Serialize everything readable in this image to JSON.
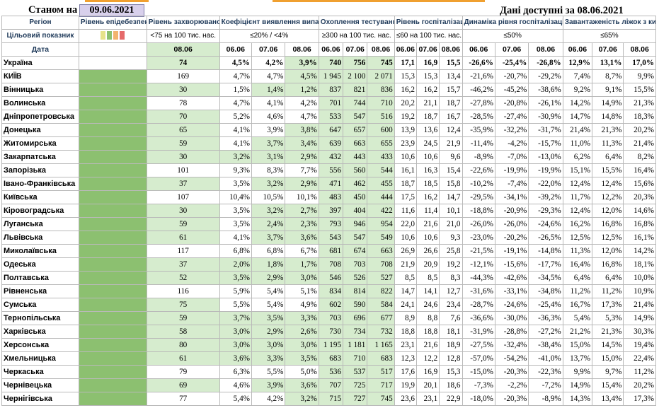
{
  "header": {
    "as_of_label": "Станом на",
    "as_of_date": "09.06.2021",
    "available_label": "Дані доступні за 08.06.2021"
  },
  "columns": {
    "region": "Регіон",
    "target_label": "Цільовий показник",
    "date_label": "Дата",
    "danger": "Рівень епідебезпеки",
    "incidence": "Рівень захворюваності",
    "incidence_target": "<75 на 100 тис. нас.",
    "positivity": "Коефіцієнт виявлення випадків інфікування",
    "positivity_target": "≤20% / <4%",
    "testing": "Охоплення тестуванням",
    "testing_target": "≥300 на 100 тис. нас.",
    "hosp": "Рівень госпіталізацій",
    "hosp_target": "≤60 на 100 тис. нас.",
    "hosp_dyn": "Динаміка рівня госпіталізацій",
    "hosp_dyn_target": "≤50%",
    "oxygen": "Завантаженість ліжок з киснем",
    "oxygen_target": "≤65%"
  },
  "dates": {
    "single": "08.06",
    "d1": "06.06",
    "d2": "07.06",
    "d3": "08.06"
  },
  "legend_colors": [
    "#e6e28a",
    "#8cc070",
    "#f2b36e",
    "#e56a6a"
  ],
  "rows": [
    {
      "name": "Україна",
      "inc": "74",
      "p": [
        "4,5%",
        "4,2%",
        "3,9%"
      ],
      "t": [
        "740",
        "756",
        "745"
      ],
      "h": [
        "17,1",
        "16,9",
        "15,5"
      ],
      "hd": [
        "-26,6%",
        "-25,4%",
        "-26,8%"
      ],
      "o": [
        "12,9%",
        "13,1%",
        "17,0%"
      ]
    },
    {
      "name": "КИЇВ",
      "inc": "169",
      "p": [
        "4,7%",
        "4,7%",
        "4,5%"
      ],
      "t": [
        "1 945",
        "2 100",
        "2 071"
      ],
      "h": [
        "15,3",
        "15,3",
        "13,4"
      ],
      "hd": [
        "-21,6%",
        "-20,7%",
        "-29,2%"
      ],
      "o": [
        "7,4%",
        "8,7%",
        "9,9%"
      ]
    },
    {
      "name": "Вінницька",
      "inc": "30",
      "p": [
        "1,5%",
        "1,4%",
        "1,2%"
      ],
      "t": [
        "837",
        "821",
        "836"
      ],
      "h": [
        "16,2",
        "16,2",
        "15,7"
      ],
      "hd": [
        "-46,2%",
        "-45,2%",
        "-38,6%"
      ],
      "o": [
        "9,2%",
        "9,1%",
        "15,5%"
      ]
    },
    {
      "name": "Волинська",
      "inc": "78",
      "p": [
        "4,7%",
        "4,1%",
        "4,2%"
      ],
      "t": [
        "701",
        "744",
        "710"
      ],
      "h": [
        "20,2",
        "21,1",
        "18,7"
      ],
      "hd": [
        "-27,8%",
        "-20,8%",
        "-26,1%"
      ],
      "o": [
        "14,2%",
        "14,9%",
        "21,3%"
      ]
    },
    {
      "name": "Дніпропетровська",
      "inc": "70",
      "p": [
        "5,2%",
        "4,6%",
        "4,7%"
      ],
      "t": [
        "533",
        "547",
        "516"
      ],
      "h": [
        "19,2",
        "18,7",
        "16,7"
      ],
      "hd": [
        "-28,5%",
        "-27,4%",
        "-30,9%"
      ],
      "o": [
        "14,7%",
        "14,8%",
        "18,3%"
      ]
    },
    {
      "name": "Донецька",
      "inc": "65",
      "p": [
        "4,1%",
        "3,9%",
        "3,8%"
      ],
      "t": [
        "647",
        "657",
        "600"
      ],
      "h": [
        "13,9",
        "13,6",
        "12,4"
      ],
      "hd": [
        "-35,9%",
        "-32,2%",
        "-31,7%"
      ],
      "o": [
        "21,4%",
        "21,3%",
        "20,2%"
      ]
    },
    {
      "name": "Житомирська",
      "inc": "59",
      "p": [
        "4,1%",
        "3,7%",
        "3,4%"
      ],
      "t": [
        "639",
        "663",
        "655"
      ],
      "h": [
        "23,9",
        "24,5",
        "21,9"
      ],
      "hd": [
        "-11,4%",
        "-4,2%",
        "-15,7%"
      ],
      "o": [
        "11,0%",
        "11,3%",
        "21,4%"
      ]
    },
    {
      "name": "Закарпатська",
      "inc": "30",
      "p": [
        "3,2%",
        "3,1%",
        "2,9%"
      ],
      "t": [
        "432",
        "443",
        "433"
      ],
      "h": [
        "10,6",
        "10,6",
        "9,6"
      ],
      "hd": [
        "-8,9%",
        "-7,0%",
        "-13,0%"
      ],
      "o": [
        "6,2%",
        "6,4%",
        "8,2%"
      ]
    },
    {
      "name": "Запорізька",
      "inc": "101",
      "p": [
        "9,3%",
        "8,3%",
        "7,7%"
      ],
      "t": [
        "556",
        "560",
        "544"
      ],
      "h": [
        "16,1",
        "16,3",
        "15,4"
      ],
      "hd": [
        "-22,6%",
        "-19,9%",
        "-19,9%"
      ],
      "o": [
        "15,1%",
        "15,5%",
        "16,4%"
      ]
    },
    {
      "name": "Івано-Франківська",
      "inc": "37",
      "p": [
        "3,5%",
        "3,2%",
        "2,9%"
      ],
      "t": [
        "471",
        "462",
        "455"
      ],
      "h": [
        "18,7",
        "18,5",
        "15,8"
      ],
      "hd": [
        "-10,2%",
        "-7,4%",
        "-22,0%"
      ],
      "o": [
        "12,4%",
        "12,4%",
        "15,6%"
      ]
    },
    {
      "name": "Київська",
      "inc": "107",
      "p": [
        "10,4%",
        "10,5%",
        "10,1%"
      ],
      "t": [
        "483",
        "450",
        "444"
      ],
      "h": [
        "17,5",
        "16,2",
        "14,7"
      ],
      "hd": [
        "-29,5%",
        "-34,1%",
        "-39,2%"
      ],
      "o": [
        "11,7%",
        "12,2%",
        "20,3%"
      ]
    },
    {
      "name": "Кіровоградська",
      "inc": "30",
      "p": [
        "3,5%",
        "3,2%",
        "2,7%"
      ],
      "t": [
        "397",
        "404",
        "422"
      ],
      "h": [
        "11,6",
        "11,4",
        "10,1"
      ],
      "hd": [
        "-18,8%",
        "-20,9%",
        "-29,3%"
      ],
      "o": [
        "12,4%",
        "12,0%",
        "14,6%"
      ]
    },
    {
      "name": "Луганська",
      "inc": "59",
      "p": [
        "3,5%",
        "2,4%",
        "2,3%"
      ],
      "t": [
        "793",
        "946",
        "954"
      ],
      "h": [
        "22,0",
        "21,6",
        "21,0"
      ],
      "hd": [
        "-26,0%",
        "-26,0%",
        "-24,6%"
      ],
      "o": [
        "16,2%",
        "16,8%",
        "16,8%"
      ]
    },
    {
      "name": "Львівська",
      "inc": "61",
      "p": [
        "4,1%",
        "3,7%",
        "3,6%"
      ],
      "t": [
        "543",
        "547",
        "549"
      ],
      "h": [
        "10,6",
        "10,6",
        "9,3"
      ],
      "hd": [
        "-23,0%",
        "-20,2%",
        "-26,5%"
      ],
      "o": [
        "12,5%",
        "12,5%",
        "16,1%"
      ]
    },
    {
      "name": "Миколаївська",
      "inc": "117",
      "p": [
        "6,8%",
        "6,8%",
        "6,7%"
      ],
      "t": [
        "681",
        "674",
        "663"
      ],
      "h": [
        "26,9",
        "26,6",
        "25,8"
      ],
      "hd": [
        "-21,5%",
        "-19,1%",
        "-14,8%"
      ],
      "o": [
        "11,3%",
        "12,0%",
        "14,2%"
      ]
    },
    {
      "name": "Одеська",
      "inc": "37",
      "p": [
        "2,0%",
        "1,8%",
        "1,7%"
      ],
      "t": [
        "708",
        "703",
        "708"
      ],
      "h": [
        "21,9",
        "20,9",
        "19,2"
      ],
      "hd": [
        "-12,1%",
        "-15,6%",
        "-17,7%"
      ],
      "o": [
        "16,4%",
        "16,8%",
        "18,1%"
      ]
    },
    {
      "name": "Полтавська",
      "inc": "52",
      "p": [
        "3,5%",
        "2,9%",
        "3,0%"
      ],
      "t": [
        "546",
        "526",
        "527"
      ],
      "h": [
        "8,5",
        "8,5",
        "8,3"
      ],
      "hd": [
        "-44,3%",
        "-42,6%",
        "-34,5%"
      ],
      "o": [
        "6,4%",
        "6,4%",
        "10,0%"
      ]
    },
    {
      "name": "Рівненська",
      "inc": "116",
      "p": [
        "5,9%",
        "5,4%",
        "5,1%"
      ],
      "t": [
        "834",
        "814",
        "822"
      ],
      "h": [
        "14,7",
        "14,1",
        "12,7"
      ],
      "hd": [
        "-31,6%",
        "-33,1%",
        "-34,8%"
      ],
      "o": [
        "11,2%",
        "11,2%",
        "10,9%"
      ]
    },
    {
      "name": "Сумська",
      "inc": "75",
      "p": [
        "5,5%",
        "5,4%",
        "4,9%"
      ],
      "t": [
        "602",
        "590",
        "584"
      ],
      "h": [
        "24,1",
        "24,6",
        "23,4"
      ],
      "hd": [
        "-28,7%",
        "-24,6%",
        "-25,4%"
      ],
      "o": [
        "16,7%",
        "17,3%",
        "21,4%"
      ]
    },
    {
      "name": "Тернопільська",
      "inc": "59",
      "p": [
        "3,7%",
        "3,5%",
        "3,3%"
      ],
      "t": [
        "703",
        "696",
        "677"
      ],
      "h": [
        "8,9",
        "8,8",
        "7,6"
      ],
      "hd": [
        "-36,6%",
        "-30,0%",
        "-36,3%"
      ],
      "o": [
        "5,4%",
        "5,3%",
        "14,9%"
      ]
    },
    {
      "name": "Харківська",
      "inc": "58",
      "p": [
        "3,0%",
        "2,9%",
        "2,6%"
      ],
      "t": [
        "730",
        "734",
        "732"
      ],
      "h": [
        "18,8",
        "18,8",
        "18,1"
      ],
      "hd": [
        "-31,9%",
        "-28,8%",
        "-27,2%"
      ],
      "o": [
        "21,2%",
        "21,3%",
        "30,3%"
      ]
    },
    {
      "name": "Херсонська",
      "inc": "80",
      "p": [
        "3,0%",
        "3,0%",
        "3,0%"
      ],
      "t": [
        "1 195",
        "1 181",
        "1 165"
      ],
      "h": [
        "23,1",
        "21,6",
        "18,9"
      ],
      "hd": [
        "-27,5%",
        "-32,4%",
        "-38,4%"
      ],
      "o": [
        "15,0%",
        "14,5%",
        "19,4%"
      ]
    },
    {
      "name": "Хмельницька",
      "inc": "61",
      "p": [
        "3,6%",
        "3,3%",
        "3,5%"
      ],
      "t": [
        "683",
        "710",
        "683"
      ],
      "h": [
        "12,3",
        "12,2",
        "12,8"
      ],
      "hd": [
        "-57,0%",
        "-54,2%",
        "-41,0%"
      ],
      "o": [
        "13,7%",
        "15,0%",
        "22,4%"
      ]
    },
    {
      "name": "Черкаська",
      "inc": "79",
      "p": [
        "6,3%",
        "5,5%",
        "5,0%"
      ],
      "t": [
        "536",
        "537",
        "517"
      ],
      "h": [
        "17,6",
        "16,9",
        "15,3"
      ],
      "hd": [
        "-15,0%",
        "-20,3%",
        "-22,3%"
      ],
      "o": [
        "9,9%",
        "9,7%",
        "11,2%"
      ]
    },
    {
      "name": "Чернівецька",
      "inc": "69",
      "p": [
        "4,6%",
        "3,9%",
        "3,6%"
      ],
      "t": [
        "707",
        "725",
        "717"
      ],
      "h": [
        "19,9",
        "20,1",
        "18,6"
      ],
      "hd": [
        "-7,3%",
        "-2,2%",
        "-7,2%"
      ],
      "o": [
        "14,9%",
        "15,4%",
        "20,2%"
      ]
    },
    {
      "name": "Чернігівська",
      "inc": "77",
      "p": [
        "5,4%",
        "4,2%",
        "3,2%"
      ],
      "t": [
        "715",
        "727",
        "745"
      ],
      "h": [
        "23,6",
        "23,1",
        "22,9"
      ],
      "hd": [
        "-18,0%",
        "-20,3%",
        "-8,9%"
      ],
      "o": [
        "14,3%",
        "13,4%",
        "17,3%"
      ]
    }
  ]
}
